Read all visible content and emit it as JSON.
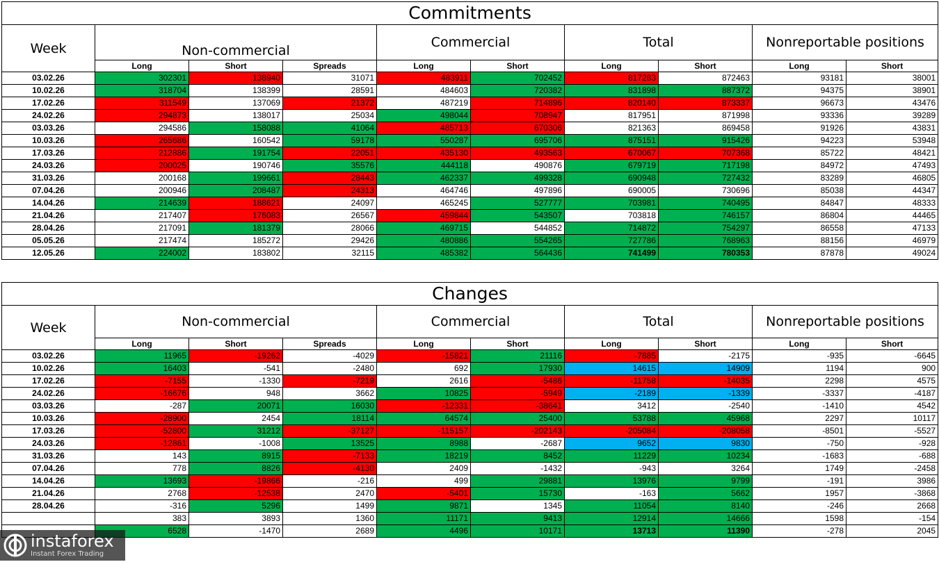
{
  "chart_data": {
    "type": "table",
    "columns": {
      "week": "Week",
      "groups": [
        "Non-commercial",
        "Commercial",
        "Total",
        "Nonreportable positions"
      ],
      "sub": [
        "Long",
        "Short",
        "Spreads",
        "Long",
        "Short",
        "Long",
        "Short",
        "Long",
        "Short"
      ]
    },
    "colors": {
      "green": "#00b050",
      "red": "#ff0000",
      "blue": "#00b0f0"
    },
    "tables": [
      {
        "title": "Commitments",
        "rows": [
          {
            "week": "03.02.26",
            "values": [
              "302301",
              "138940",
              "31071",
              "483911",
              "702452",
              "817283",
              "872463",
              "93181",
              "38001"
            ],
            "colors": [
              "g",
              "r",
              "",
              "r",
              "g",
              "r",
              "",
              "",
              ""
            ]
          },
          {
            "week": "10.02.26",
            "values": [
              "318704",
              "138399",
              "28591",
              "484603",
              "720382",
              "831898",
              "887372",
              "94375",
              "38901"
            ],
            "colors": [
              "g",
              "",
              "",
              "",
              "g",
              "g",
              "g",
              "",
              ""
            ]
          },
          {
            "week": "17.02.26",
            "values": [
              "311549",
              "137069",
              "21372",
              "487219",
              "714896",
              "820140",
              "873337",
              "96673",
              "43476"
            ],
            "colors": [
              "r",
              "",
              "r",
              "",
              "r",
              "r",
              "r",
              "",
              ""
            ]
          },
          {
            "week": "24.02.26",
            "values": [
              "294873",
              "138017",
              "25034",
              "498044",
              "708947",
              "817951",
              "871998",
              "93336",
              "39289"
            ],
            "colors": [
              "r",
              "",
              "",
              "g",
              "r",
              "",
              "",
              "",
              ""
            ]
          },
          {
            "week": "03.03.26",
            "values": [
              "294586",
              "158088",
              "41064",
              "485713",
              "670306",
              "821363",
              "869458",
              "91926",
              "43831"
            ],
            "colors": [
              "",
              "g",
              "g",
              "r",
              "r",
              "",
              "",
              "",
              ""
            ]
          },
          {
            "week": "10.03.26",
            "values": [
              "265686",
              "160542",
              "59178",
              "550287",
              "695706",
              "875151",
              "915426",
              "94223",
              "53948"
            ],
            "colors": [
              "r",
              "",
              "g",
              "g",
              "g",
              "g",
              "g",
              "",
              ""
            ]
          },
          {
            "week": "17.03.26",
            "values": [
              "212886",
              "191754",
              "22051",
              "435130",
              "493563",
              "670067",
              "707368",
              "85722",
              "48421"
            ],
            "colors": [
              "r",
              "g",
              "r",
              "r",
              "r",
              "r",
              "r",
              "",
              ""
            ]
          },
          {
            "week": "24.03.26",
            "values": [
              "200025",
              "190746",
              "35576",
              "444118",
              "490876",
              "679719",
              "717198",
              "84972",
              "47493"
            ],
            "colors": [
              "r",
              "",
              "g",
              "g",
              "",
              "g",
              "g",
              "",
              ""
            ]
          },
          {
            "week": "31.03.26",
            "values": [
              "200168",
              "199661",
              "28443",
              "462337",
              "499328",
              "690948",
              "727432",
              "83289",
              "46805"
            ],
            "colors": [
              "",
              "g",
              "r",
              "g",
              "g",
              "g",
              "g",
              "",
              ""
            ]
          },
          {
            "week": "07.04.26",
            "values": [
              "200946",
              "208487",
              "24313",
              "464746",
              "497896",
              "690005",
              "730696",
              "85038",
              "44347"
            ],
            "colors": [
              "",
              "g",
              "r",
              "",
              "",
              "",
              "",
              "",
              ""
            ]
          },
          {
            "week": "14.04.26",
            "values": [
              "214639",
              "188621",
              "24097",
              "465245",
              "527777",
              "703981",
              "740495",
              "84847",
              "48333"
            ],
            "colors": [
              "g",
              "r",
              "",
              "",
              "g",
              "g",
              "g",
              "",
              ""
            ]
          },
          {
            "week": "21.04.26",
            "values": [
              "217407",
              "176083",
              "26567",
              "459844",
              "543507",
              "703818",
              "746157",
              "86804",
              "44465"
            ],
            "colors": [
              "",
              "r",
              "",
              "r",
              "g",
              "",
              "g",
              "",
              ""
            ]
          },
          {
            "week": "28.04.26",
            "values": [
              "217091",
              "181379",
              "28066",
              "469715",
              "544852",
              "714872",
              "754297",
              "86558",
              "47133"
            ],
            "colors": [
              "",
              "g",
              "",
              "g",
              "",
              "g",
              "g",
              "",
              ""
            ]
          },
          {
            "week": "05.05.26",
            "values": [
              "217474",
              "185272",
              "29426",
              "480886",
              "554265",
              "727786",
              "768963",
              "88156",
              "46979"
            ],
            "colors": [
              "",
              "",
              "",
              "g",
              "g",
              "g",
              "g",
              "",
              ""
            ]
          },
          {
            "week": "12.05.26",
            "values": [
              "224002",
              "183802",
              "32115",
              "485382",
              "564436",
              "741499",
              "780353",
              "87878",
              "49024"
            ],
            "colors": [
              "g",
              "",
              "",
              "g",
              "g",
              "g",
              "g",
              "",
              ""
            ],
            "bold": [
              5,
              6
            ]
          }
        ]
      },
      {
        "title": "Changes",
        "rows": [
          {
            "week": "03.02.26",
            "values": [
              "11965",
              "-19262",
              "-4029",
              "-15821",
              "21116",
              "-7885",
              "-2175",
              "-935",
              "-6645"
            ],
            "colors": [
              "g",
              "r",
              "",
              "r",
              "g",
              "r",
              "",
              "",
              ""
            ]
          },
          {
            "week": "10.02.26",
            "values": [
              "16403",
              "-541",
              "-2480",
              "692",
              "17930",
              "14615",
              "14909",
              "1194",
              "900"
            ],
            "colors": [
              "g",
              "",
              "",
              "",
              "g",
              "b",
              "b",
              "",
              ""
            ]
          },
          {
            "week": "17.02.26",
            "values": [
              "-7155",
              "-1330",
              "-7219",
              "2616",
              "-5486",
              "-11758",
              "-14035",
              "2298",
              "4575"
            ],
            "colors": [
              "r",
              "",
              "r",
              "",
              "r",
              "r",
              "r",
              "",
              ""
            ]
          },
          {
            "week": "24.02.26",
            "values": [
              "-16676",
              "948",
              "3662",
              "10825",
              "-5949",
              "-2189",
              "-1339",
              "-3337",
              "-4187"
            ],
            "colors": [
              "r",
              "",
              "",
              "g",
              "r",
              "b",
              "b",
              "",
              ""
            ]
          },
          {
            "week": "03.03.26",
            "values": [
              "-287",
              "20071",
              "16030",
              "-12331",
              "-38641",
              "3412",
              "-2540",
              "-1410",
              "4542"
            ],
            "colors": [
              "",
              "g",
              "g",
              "r",
              "r",
              "",
              "",
              "",
              ""
            ]
          },
          {
            "week": "10.03.26",
            "values": [
              "-28900",
              "2454",
              "18114",
              "64574",
              "25400",
              "53788",
              "45968",
              "2297",
              "10117"
            ],
            "colors": [
              "r",
              "",
              "g",
              "g",
              "g",
              "g",
              "g",
              "",
              ""
            ]
          },
          {
            "week": "17.03.26",
            "values": [
              "-52800",
              "31212",
              "-37127",
              "-115157",
              "-202143",
              "-205084",
              "-208058",
              "-8501",
              "-5527"
            ],
            "colors": [
              "r",
              "g",
              "r",
              "r",
              "r",
              "r",
              "r",
              "",
              ""
            ]
          },
          {
            "week": "24.03.26",
            "values": [
              "-12861",
              "-1008",
              "13525",
              "8988",
              "-2687",
              "9652",
              "9830",
              "-750",
              "-928"
            ],
            "colors": [
              "r",
              "",
              "g",
              "g",
              "",
              "b",
              "b",
              "",
              ""
            ]
          },
          {
            "week": "31.03.26",
            "values": [
              "143",
              "8915",
              "-7133",
              "18219",
              "8452",
              "11229",
              "10234",
              "-1683",
              "-688"
            ],
            "colors": [
              "",
              "g",
              "r",
              "g",
              "g",
              "g",
              "g",
              "",
              ""
            ]
          },
          {
            "week": "07.04.26",
            "values": [
              "778",
              "8826",
              "-4130",
              "2409",
              "-1432",
              "-943",
              "3264",
              "1749",
              "-2458"
            ],
            "colors": [
              "",
              "g",
              "r",
              "",
              "",
              "",
              "",
              "",
              ""
            ]
          },
          {
            "week": "14.04.26",
            "values": [
              "13693",
              "-19866",
              "-216",
              "499",
              "29881",
              "13976",
              "9799",
              "-191",
              "3986"
            ],
            "colors": [
              "g",
              "r",
              "",
              "",
              "g",
              "g",
              "g",
              "",
              ""
            ]
          },
          {
            "week": "21.04.26",
            "values": [
              "2768",
              "-12538",
              "2470",
              "-5401",
              "15730",
              "-163",
              "5662",
              "1957",
              "-3868"
            ],
            "colors": [
              "",
              "r",
              "",
              "r",
              "g",
              "",
              "g",
              "",
              ""
            ]
          },
          {
            "week": "28.04.26",
            "values": [
              "-316",
              "5296",
              "1499",
              "9871",
              "1345",
              "11054",
              "8140",
              "-246",
              "2668"
            ],
            "colors": [
              "",
              "g",
              "",
              "g",
              "",
              "g",
              "g",
              "",
              ""
            ]
          },
          {
            "week": "",
            "values": [
              "383",
              "3893",
              "1360",
              "11171",
              "9413",
              "12914",
              "14666",
              "1598",
              "-154"
            ],
            "colors": [
              "",
              "",
              "",
              "g",
              "g",
              "g",
              "g",
              "",
              ""
            ]
          },
          {
            "week": "",
            "values": [
              "6528",
              "-1470",
              "2689",
              "4496",
              "10171",
              "13713",
              "11390",
              "-278",
              "2045"
            ],
            "colors": [
              "g",
              "",
              "",
              "g",
              "g",
              "g",
              "g",
              "",
              ""
            ],
            "bold": [
              5,
              6
            ]
          }
        ]
      }
    ]
  },
  "watermark": {
    "brand": "instaforex",
    "tagline": "Instant Forex Trading",
    "icon": "instaforex-logo-icon"
  }
}
